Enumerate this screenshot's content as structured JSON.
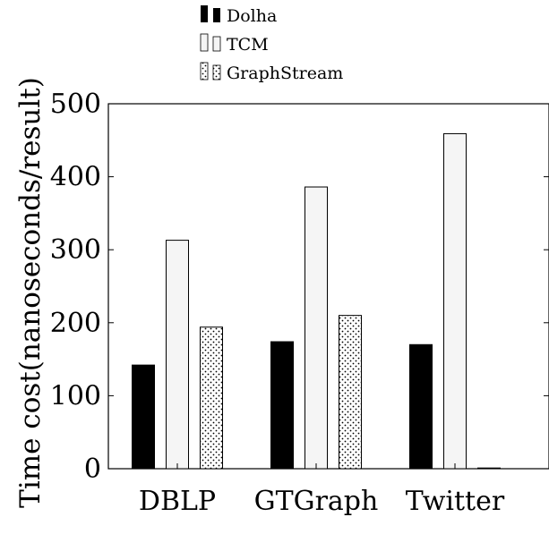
{
  "chart_data": {
    "type": "bar",
    "categories": [
      "DBLP",
      "GTGraph",
      "Twitter"
    ],
    "series": [
      {
        "name": "Dolha",
        "values": [
          142,
          174,
          170
        ],
        "fill": "#000000"
      },
      {
        "name": "TCM",
        "values": [
          313,
          386,
          459
        ],
        "fill": "#f5f5f5"
      },
      {
        "name": "GraphStream",
        "values": [
          194,
          210,
          1
        ],
        "fill": "pattern-dots"
      }
    ],
    "ylabel": "Time cost(nanoseconds/result)",
    "xlabel": "",
    "ylim": [
      0,
      500
    ],
    "yticks": [
      0,
      100,
      200,
      300,
      400,
      500
    ],
    "grid": false,
    "legend": "top-center"
  }
}
